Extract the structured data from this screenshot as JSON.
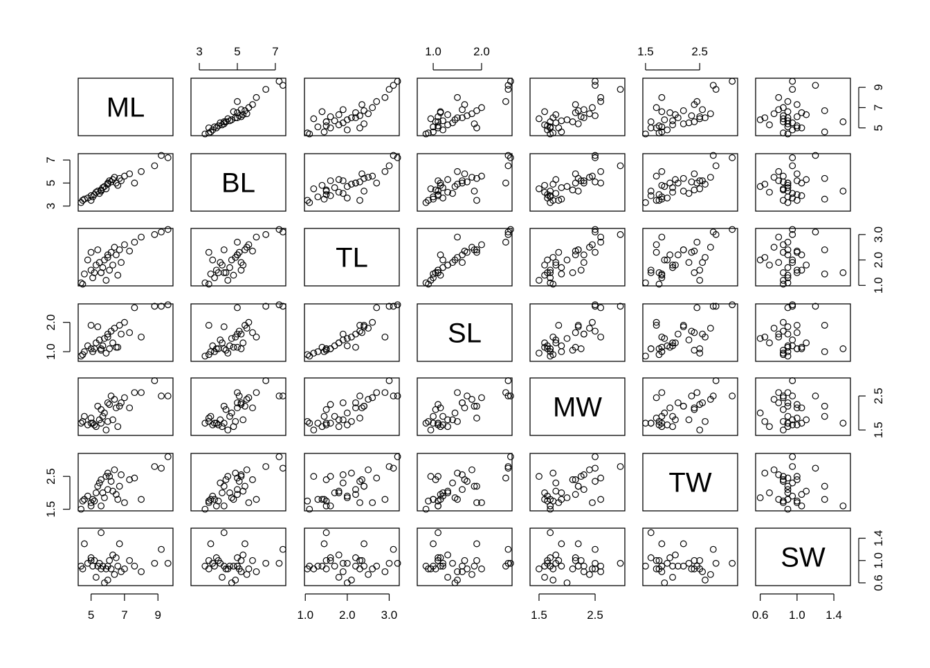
{
  "chart_data": {
    "type": "scatter-matrix",
    "variables": [
      {
        "name": "ML",
        "lim": [
          4.23,
          9.9
        ],
        "ticks": [
          5,
          7,
          9
        ],
        "values": [
          4.4,
          4.5,
          4.6,
          4.8,
          5.0,
          5.0,
          5.1,
          5.2,
          5.3,
          5.4,
          5.5,
          5.6,
          5.7,
          5.8,
          5.9,
          6.0,
          6.0,
          6.1,
          6.2,
          6.3,
          6.4,
          6.5,
          6.6,
          6.7,
          6.8,
          7.0,
          7.3,
          7.6,
          8.0,
          8.8,
          9.2,
          9.6,
          5.6
        ]
      },
      {
        "name": "BL",
        "lim": [
          2.56,
          7.55
        ],
        "ticks": [
          3,
          5,
          7
        ],
        "values": [
          3.3,
          3.5,
          3.6,
          3.7,
          3.5,
          3.9,
          3.8,
          4.0,
          4.2,
          4.3,
          4.1,
          4.4,
          4.6,
          4.7,
          4.5,
          4.9,
          5.0,
          5.2,
          5.1,
          5.3,
          5.5,
          5.0,
          4.8,
          5.4,
          5.2,
          5.6,
          5.8,
          5.0,
          6.0,
          6.5,
          7.4,
          7.2,
          4.3
        ]
      },
      {
        "name": "TL",
        "lim": [
          0.98,
          3.24
        ],
        "ticks": [
          {
            "value": 1,
            "label": "1.0"
          },
          {
            "value": 2,
            "label": "2.0"
          },
          {
            "value": 3,
            "label": "3.0"
          }
        ],
        "values": [
          1.1,
          1.05,
          1.45,
          2.0,
          2.3,
          1.6,
          1.3,
          1.5,
          1.8,
          2.4,
          1.9,
          1.5,
          1.7,
          2.0,
          1.2,
          2.1,
          2.2,
          1.6,
          2.3,
          1.8,
          2.5,
          2.2,
          1.4,
          2.4,
          1.9,
          2.6,
          2.35,
          2.7,
          2.9,
          3.0,
          3.1,
          3.2,
          1.5
        ]
      },
      {
        "name": "SL",
        "lim": [
          0.67,
          2.63
        ],
        "ticks": [
          {
            "value": 1,
            "label": "1.0"
          },
          {
            "value": 2,
            "label": "2.0"
          }
        ],
        "values": [
          0.85,
          0.9,
          1.0,
          1.2,
          1.9,
          1.1,
          1.0,
          1.1,
          1.3,
          1.85,
          1.4,
          1.05,
          1.2,
          1.45,
          0.95,
          1.5,
          1.6,
          1.1,
          1.7,
          1.3,
          1.8,
          1.15,
          1.15,
          1.9,
          1.6,
          2.0,
          1.65,
          2.5,
          1.5,
          2.55,
          2.55,
          2.6,
          1.1
        ]
      },
      {
        "name": "MW",
        "lim": [
          1.34,
          3.03
        ],
        "ticks": [
          1.5,
          2.5
        ],
        "values": [
          1.7,
          1.75,
          1.9,
          1.65,
          1.85,
          1.7,
          1.7,
          1.65,
          1.6,
          2.2,
          1.8,
          2.1,
          1.9,
          2.0,
          1.5,
          1.75,
          2.3,
          2.25,
          2.5,
          1.8,
          2.4,
          2.15,
          1.6,
          2.2,
          2.3,
          2.45,
          2.15,
          2.6,
          2.6,
          2.95,
          2.5,
          2.5,
          1.7
        ]
      },
      {
        "name": "TW",
        "lim": [
          1.45,
          3.2
        ],
        "ticks": [
          1.5,
          2.5
        ],
        "values": [
          1.5,
          1.75,
          1.8,
          1.9,
          1.7,
          1.6,
          1.8,
          1.75,
          2.0,
          2.2,
          2.3,
          2.4,
          2.0,
          1.85,
          2.5,
          2.6,
          2.1,
          2.5,
          2.35,
          2.05,
          2.7,
          1.95,
          1.8,
          2.2,
          2.55,
          1.7,
          2.4,
          2.45,
          1.8,
          2.8,
          2.75,
          3.1,
          1.6
        ]
      },
      {
        "name": "SW",
        "lim": [
          0.55,
          1.58
        ],
        "ticks": [
          0.6,
          {
            "value": 1,
            "label": "1.0"
          },
          1.4
        ],
        "values": [
          0.9,
          0.85,
          1.3,
          0.95,
          1.0,
          1.05,
          0.9,
          1.0,
          0.7,
          0.9,
          0.95,
          0.85,
          0.9,
          0.6,
          0.85,
          0.65,
          0.9,
          1.0,
          0.85,
          1.1,
          0.75,
          1.05,
          0.9,
          1.3,
          0.8,
          0.85,
          1.0,
          0.9,
          0.8,
          0.95,
          1.2,
          0.95,
          1.5
        ]
      }
    ]
  }
}
